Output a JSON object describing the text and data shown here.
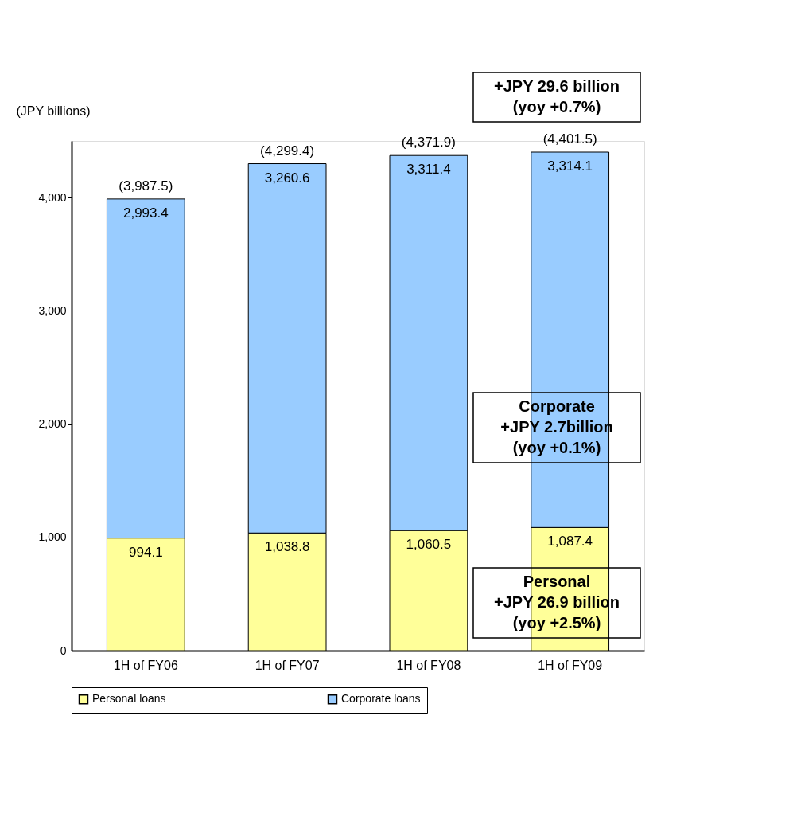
{
  "chart_data": {
    "type": "bar",
    "stacked": true,
    "ylabel": "(JPY billions)",
    "categories": [
      "1H of FY06",
      "1H of FY07",
      "1H of FY08",
      "1H of FY09"
    ],
    "series": [
      {
        "name": "Personal loans",
        "color": "#ffff99",
        "values": [
          994.1,
          1038.8,
          1060.5,
          1087.4
        ],
        "value_labels": [
          "994.1",
          "1,038.8",
          "1,060.5",
          "1,087.4"
        ]
      },
      {
        "name": "Corporate loans",
        "color": "#99ccff",
        "values": [
          2993.4,
          3260.6,
          3311.4,
          3314.1
        ],
        "value_labels": [
          "2,993.4",
          "3,260.6",
          "3,311.4",
          "3,314.1"
        ]
      }
    ],
    "totals": [
      "(3,987.5)",
      "(4,299.4)",
      "(4,371.9)",
      "(4,401.5)"
    ],
    "data_labels": true,
    "ylim": [
      0,
      4500
    ],
    "yticks": [
      0,
      {
        "value": 1000,
        "label": "1,000"
      },
      {
        "value": 2000,
        "label": "2,000"
      },
      {
        "value": 3000,
        "label": "3,000"
      },
      {
        "value": 4000,
        "label": "4,000"
      }
    ],
    "grid": false,
    "legend": "bottom",
    "annotations": [
      "+JPY 29.6 billion\n(yoy +0.7%)",
      "Corporate\n+JPY 2.7billion\n(yoy +0.1%)",
      "Personal\n+JPY 26.9 billion\n(yoy +2.5%)"
    ]
  }
}
